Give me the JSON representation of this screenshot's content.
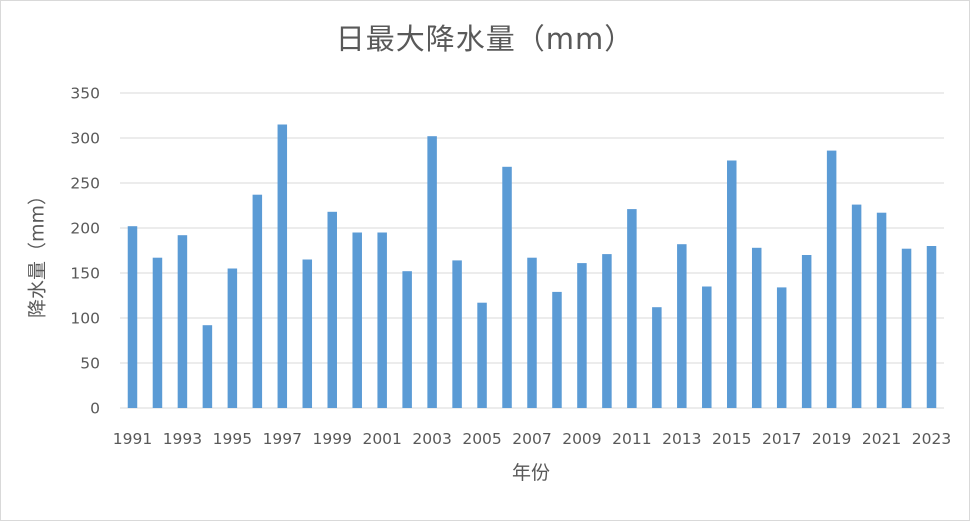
{
  "chart_data": {
    "type": "bar",
    "title": "日最大降水量（mm）",
    "xlabel": "年份",
    "ylabel": "降水量（mm）",
    "ylim": [
      0,
      350
    ],
    "yticks": [
      0,
      50,
      100,
      150,
      200,
      250,
      300,
      350
    ],
    "grid": true,
    "legend": "none",
    "bar_color": "#5b9bd5",
    "categories": [
      "1991",
      "1992",
      "1993",
      "1994",
      "1995",
      "1996",
      "1997",
      "1998",
      "1999",
      "2000",
      "2001",
      "2002",
      "2003",
      "2004",
      "2005",
      "2006",
      "2007",
      "2008",
      "2009",
      "2010",
      "2011",
      "2012",
      "2013",
      "2014",
      "2015",
      "2016",
      "2017",
      "2018",
      "2019",
      "2020",
      "2021",
      "2022",
      "2023"
    ],
    "category_labels_shown": [
      "1991",
      "1993",
      "1995",
      "1997",
      "1999",
      "2001",
      "2003",
      "2005",
      "2007",
      "2009",
      "2011",
      "2013",
      "2015",
      "2017",
      "2019",
      "2021",
      "2023"
    ],
    "values": [
      202,
      167,
      192,
      92,
      155,
      237,
      315,
      165,
      218,
      195,
      195,
      152,
      302,
      164,
      117,
      268,
      167,
      129,
      161,
      171,
      221,
      112,
      182,
      135,
      275,
      178,
      134,
      170,
      286,
      226,
      217,
      177,
      180
    ]
  }
}
